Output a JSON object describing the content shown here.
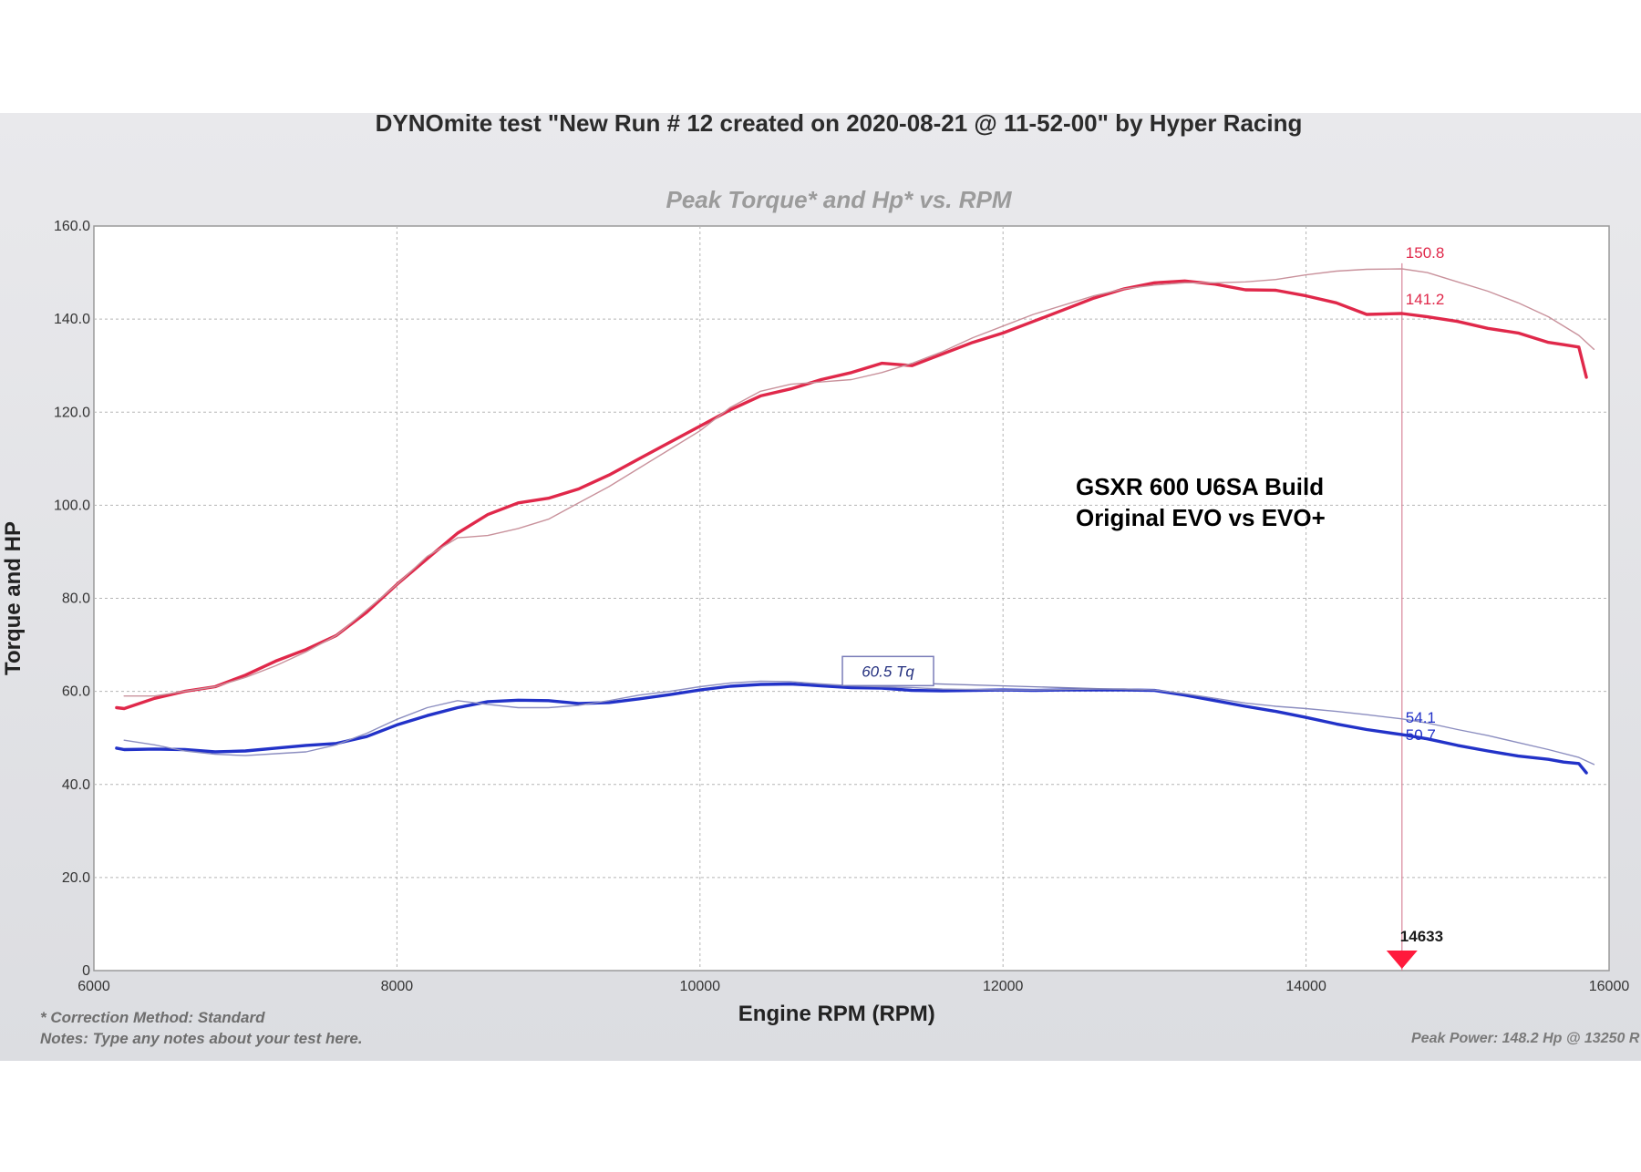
{
  "chart_data": {
    "type": "line",
    "title": "DYNOmite test \"New Run # 12 created on 2020-08-21 @ 11-52-00\" by Hyper Racing",
    "subtitle": "Peak Torque* and Hp* vs. RPM",
    "xlabel": "Engine RPM (RPM)",
    "ylabel": "Torque and HP",
    "xlim": [
      6000,
      16000
    ],
    "ylim": [
      0,
      160
    ],
    "grid": true,
    "x_ticks": [
      "6000",
      "8000",
      "10000",
      "12000",
      "14000",
      "16000"
    ],
    "y_ticks": [
      "0",
      "20.0",
      "40.0",
      "60.0",
      "80.0",
      "100.0",
      "120.0",
      "140.0",
      "160.0"
    ],
    "series": [
      {
        "color": "#e0284a",
        "style": "thick",
        "points": [
          [
            6150,
            56.5
          ],
          [
            6200,
            56.3
          ],
          [
            6400,
            58.5
          ],
          [
            6600,
            60
          ],
          [
            6800,
            61
          ],
          [
            7000,
            63.5
          ],
          [
            7200,
            66.5
          ],
          [
            7400,
            69
          ],
          [
            7600,
            72
          ],
          [
            7800,
            77
          ],
          [
            8000,
            83
          ],
          [
            8200,
            88.5
          ],
          [
            8400,
            94
          ],
          [
            8600,
            98
          ],
          [
            8800,
            100.5
          ],
          [
            9000,
            101.5
          ],
          [
            9200,
            103.5
          ],
          [
            9400,
            106.5
          ],
          [
            9600,
            110
          ],
          [
            9800,
            113.5
          ],
          [
            10000,
            117
          ],
          [
            10200,
            120.5
          ],
          [
            10400,
            123.5
          ],
          [
            10600,
            125
          ],
          [
            10800,
            127
          ],
          [
            11000,
            128.5
          ],
          [
            11200,
            130.5
          ],
          [
            11400,
            130
          ],
          [
            11600,
            132.5
          ],
          [
            11800,
            135
          ],
          [
            12000,
            137
          ],
          [
            12200,
            139.5
          ],
          [
            12400,
            142
          ],
          [
            12600,
            144.5
          ],
          [
            12800,
            146.5
          ],
          [
            13000,
            147.8
          ],
          [
            13200,
            148.2
          ],
          [
            13400,
            147.5
          ],
          [
            13600,
            146.3
          ],
          [
            13800,
            146.2
          ],
          [
            14000,
            145
          ],
          [
            14200,
            143.5
          ],
          [
            14400,
            141
          ],
          [
            14633,
            141.2
          ],
          [
            14800,
            140.5
          ],
          [
            15000,
            139.5
          ],
          [
            15200,
            138
          ],
          [
            15400,
            137
          ],
          [
            15600,
            135
          ],
          [
            15700,
            134.5
          ],
          [
            15800,
            134
          ],
          [
            15850,
            127.5
          ]
        ]
      },
      {
        "color": "#c9929c",
        "style": "thin",
        "points": [
          [
            6200,
            59
          ],
          [
            6400,
            59
          ],
          [
            6600,
            60
          ],
          [
            6800,
            61
          ],
          [
            7000,
            63
          ],
          [
            7200,
            65.5
          ],
          [
            7400,
            68.5
          ],
          [
            7600,
            72
          ],
          [
            7800,
            77.5
          ],
          [
            8000,
            83
          ],
          [
            8200,
            89
          ],
          [
            8400,
            93
          ],
          [
            8600,
            93.5
          ],
          [
            8800,
            95
          ],
          [
            9000,
            97
          ],
          [
            9200,
            100.5
          ],
          [
            9400,
            104
          ],
          [
            9600,
            108
          ],
          [
            9800,
            112
          ],
          [
            10000,
            116
          ],
          [
            10200,
            121
          ],
          [
            10400,
            124.5
          ],
          [
            10600,
            126
          ],
          [
            10800,
            126.5
          ],
          [
            11000,
            127
          ],
          [
            11200,
            128.5
          ],
          [
            11400,
            130.5
          ],
          [
            11600,
            133
          ],
          [
            11800,
            136
          ],
          [
            12000,
            138.5
          ],
          [
            12200,
            141
          ],
          [
            12400,
            143
          ],
          [
            12600,
            145
          ],
          [
            12800,
            146.5
          ],
          [
            13000,
            147.3
          ],
          [
            13200,
            147.8
          ],
          [
            13400,
            147.8
          ],
          [
            13600,
            148
          ],
          [
            13800,
            148.5
          ],
          [
            14000,
            149.5
          ],
          [
            14200,
            150.3
          ],
          [
            14400,
            150.7
          ],
          [
            14633,
            150.8
          ],
          [
            14800,
            150
          ],
          [
            15000,
            148
          ],
          [
            15200,
            146
          ],
          [
            15400,
            143.5
          ],
          [
            15600,
            140.5
          ],
          [
            15800,
            136.5
          ],
          [
            15900,
            133.5
          ]
        ]
      },
      {
        "color": "#2232c8",
        "style": "thick",
        "points": [
          [
            6150,
            47.8
          ],
          [
            6200,
            47.5
          ],
          [
            6400,
            47.6
          ],
          [
            6600,
            47.5
          ],
          [
            6800,
            47
          ],
          [
            7000,
            47.2
          ],
          [
            7200,
            47.8
          ],
          [
            7400,
            48.4
          ],
          [
            7600,
            48.8
          ],
          [
            7800,
            50.3
          ],
          [
            8000,
            52.8
          ],
          [
            8200,
            54.8
          ],
          [
            8400,
            56.5
          ],
          [
            8600,
            57.8
          ],
          [
            8800,
            58.1
          ],
          [
            9000,
            58
          ],
          [
            9200,
            57.4
          ],
          [
            9400,
            57.6
          ],
          [
            9600,
            58.4
          ],
          [
            9800,
            59.3
          ],
          [
            10000,
            60.3
          ],
          [
            10200,
            61.1
          ],
          [
            10400,
            61.5
          ],
          [
            10600,
            61.6
          ],
          [
            10800,
            61.2
          ],
          [
            11000,
            60.8
          ],
          [
            11200,
            60.7
          ],
          [
            11400,
            60.2
          ],
          [
            11600,
            60.1
          ],
          [
            11800,
            60.2
          ],
          [
            12000,
            60.3
          ],
          [
            12200,
            60.2
          ],
          [
            12400,
            60.3
          ],
          [
            12600,
            60.3
          ],
          [
            12800,
            60.3
          ],
          [
            13000,
            60.2
          ],
          [
            13200,
            59.2
          ],
          [
            13400,
            58
          ],
          [
            13600,
            56.8
          ],
          [
            13800,
            55.7
          ],
          [
            14000,
            54.4
          ],
          [
            14200,
            53
          ],
          [
            14400,
            51.8
          ],
          [
            14633,
            50.7
          ],
          [
            14800,
            49.8
          ],
          [
            15000,
            48.4
          ],
          [
            15200,
            47.2
          ],
          [
            15400,
            46.1
          ],
          [
            15600,
            45.4
          ],
          [
            15700,
            44.8
          ],
          [
            15800,
            44.5
          ],
          [
            15850,
            42.5
          ]
        ]
      },
      {
        "color": "#8c8ec0",
        "style": "thin",
        "points": [
          [
            6200,
            49.5
          ],
          [
            6400,
            48.5
          ],
          [
            6600,
            47.2
          ],
          [
            6800,
            46.5
          ],
          [
            7000,
            46.2
          ],
          [
            7200,
            46.6
          ],
          [
            7400,
            47
          ],
          [
            7600,
            48.5
          ],
          [
            7800,
            51
          ],
          [
            8000,
            54
          ],
          [
            8200,
            56.5
          ],
          [
            8400,
            58
          ],
          [
            8600,
            57.2
          ],
          [
            8800,
            56.5
          ],
          [
            9000,
            56.5
          ],
          [
            9200,
            57
          ],
          [
            9400,
            58
          ],
          [
            9600,
            59.2
          ],
          [
            9800,
            60
          ],
          [
            10000,
            61
          ],
          [
            10200,
            61.8
          ],
          [
            10400,
            62.2
          ],
          [
            10600,
            62.1
          ],
          [
            10800,
            61.6
          ],
          [
            11000,
            61.2
          ],
          [
            11200,
            61
          ],
          [
            11400,
            60.8
          ],
          [
            11600,
            60.5
          ],
          [
            11800,
            60.4
          ],
          [
            12000,
            60.3
          ],
          [
            12200,
            60.3
          ],
          [
            12400,
            60.4
          ],
          [
            12600,
            60.5
          ],
          [
            12800,
            60.5
          ],
          [
            13000,
            60.3
          ],
          [
            13200,
            59.5
          ],
          [
            13400,
            58.5
          ],
          [
            13600,
            57.5
          ],
          [
            13800,
            56.8
          ],
          [
            14000,
            56.3
          ],
          [
            14200,
            55.7
          ],
          [
            14400,
            55
          ],
          [
            14633,
            54.1
          ],
          [
            14800,
            53.2
          ],
          [
            15000,
            51.8
          ],
          [
            15200,
            50.5
          ],
          [
            15400,
            49
          ],
          [
            15600,
            47.5
          ],
          [
            15800,
            45.8
          ],
          [
            15900,
            44.3
          ]
        ]
      }
    ],
    "data_labels": [
      {
        "text": "150.8",
        "x": 14633,
        "y": 150.8,
        "color": "#e0284a"
      },
      {
        "text": "141.2",
        "x": 14633,
        "y": 141.2,
        "color": "#e0284a"
      },
      {
        "text": "54.1",
        "x": 14633,
        "y": 54.1,
        "color": "#2232c8"
      },
      {
        "text": "50.7",
        "x": 14633,
        "y": 50.7,
        "color": "#2232c8"
      }
    ],
    "callout": {
      "text": "60.5 Tq",
      "anchor_x": 13000,
      "anchor_y": 60.3
    },
    "annotation": {
      "line1": "GSXR 600 U6SA Build",
      "line2": "Original EVO vs EVO+"
    },
    "cursor": {
      "x": 14633,
      "label": "14633",
      "color": "#e0284a"
    }
  },
  "footer": {
    "correction": "* Correction Method: Standard",
    "notes": "Notes: Type any notes about your test here.",
    "peak_power": "Peak Power: 148.2 Hp @ 13250 R"
  }
}
